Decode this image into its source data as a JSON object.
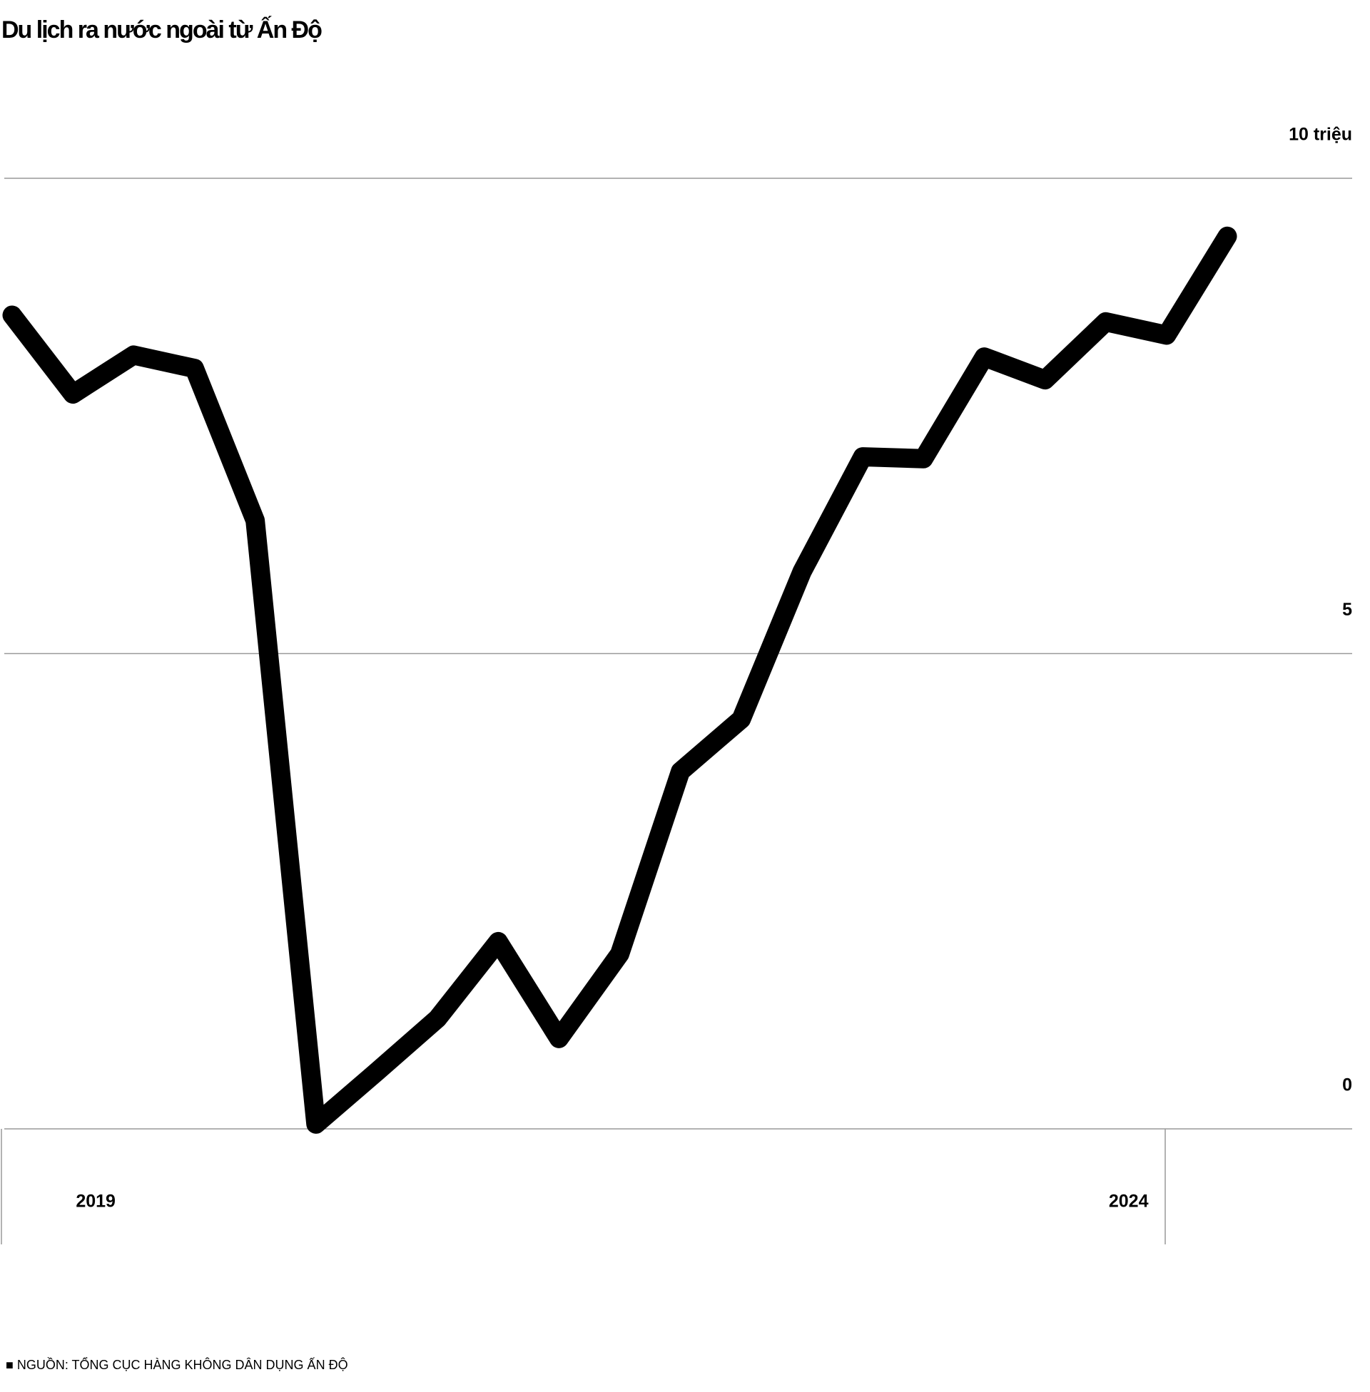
{
  "chart_data": {
    "type": "line",
    "title": "Du lịch ra nước ngoài từ Ấn Độ",
    "source": "■ NGUỒN: TỔNG CỤC HÀNG KHÔNG DÂN DỤNG ẤN ĐỘ",
    "categories": [
      null,
      "2019",
      null,
      null,
      null,
      null,
      null,
      null,
      null,
      null,
      null,
      null,
      null,
      null,
      null,
      null,
      null,
      null,
      "2024",
      null,
      null
    ],
    "series": [
      {
        "name": null,
        "color": "#000000",
        "values": [
          8.56,
          7.73,
          8.14,
          8.0,
          6.4,
          0.05,
          0.6,
          1.16,
          1.97,
          0.95,
          1.84,
          3.76,
          4.31,
          5.86,
          7.07,
          7.05,
          8.12,
          7.88,
          8.49,
          8.35,
          9.39
        ]
      }
    ],
    "ylim": [
      0,
      10
    ],
    "yticks": [
      0,
      5,
      {
        "value": 10,
        "label": "10 triệu"
      }
    ],
    "grid": true
  }
}
